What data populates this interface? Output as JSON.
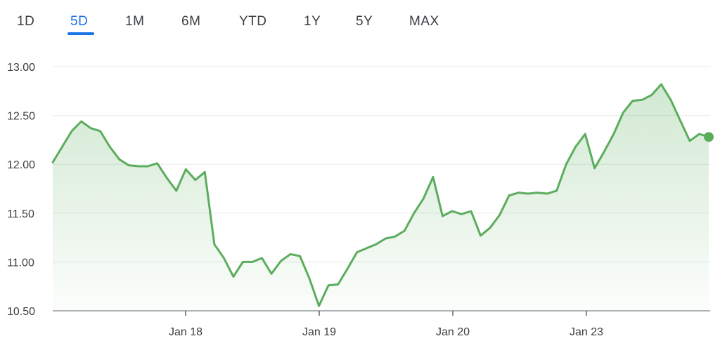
{
  "range_tabs": [
    {
      "label": "1D"
    },
    {
      "label": "5D",
      "active": true
    },
    {
      "label": "1M"
    },
    {
      "label": "6M"
    },
    {
      "label": "YTD"
    },
    {
      "label": "1Y"
    },
    {
      "label": "5Y"
    },
    {
      "label": "MAX"
    }
  ],
  "colors": {
    "line": "#5bad5d",
    "fill": "#5bad5d",
    "active_tab": "#1a73e8",
    "grid": "#e8eaed"
  },
  "chart_data": {
    "type": "area",
    "title": "",
    "xlabel": "",
    "ylabel": "",
    "ylim": [
      10.5,
      13.0
    ],
    "y_ticks": [
      "13.00",
      "12.50",
      "12.00",
      "11.50",
      "11.00",
      "10.50"
    ],
    "x_ticks": [
      "Jan 18",
      "Jan 19",
      "Jan 20",
      "Jan 23"
    ],
    "grid": true,
    "legend": "none",
    "series": [
      {
        "values": [
          12.02,
          12.18,
          12.34,
          12.44,
          12.37,
          12.34,
          12.18,
          12.05,
          11.99,
          11.98,
          11.98,
          12.01,
          11.86,
          11.73,
          11.95,
          11.84,
          11.92,
          11.18,
          11.04,
          10.85,
          11.0,
          11.0,
          11.04,
          10.88,
          11.01,
          11.08,
          11.06,
          10.83,
          10.55,
          10.76,
          10.77,
          10.93,
          11.1,
          11.14,
          11.18,
          11.24,
          11.26,
          11.32,
          11.5,
          11.65,
          11.87,
          11.47,
          11.52,
          11.49,
          11.52,
          11.27,
          11.35,
          11.48,
          11.68,
          11.71,
          11.7,
          11.71,
          11.7,
          11.73,
          12.0,
          12.18,
          12.31,
          11.96,
          12.13,
          12.31,
          12.53,
          12.65,
          12.66,
          12.71,
          12.82,
          12.66,
          12.45,
          12.24,
          12.31,
          12.28
        ]
      }
    ]
  }
}
